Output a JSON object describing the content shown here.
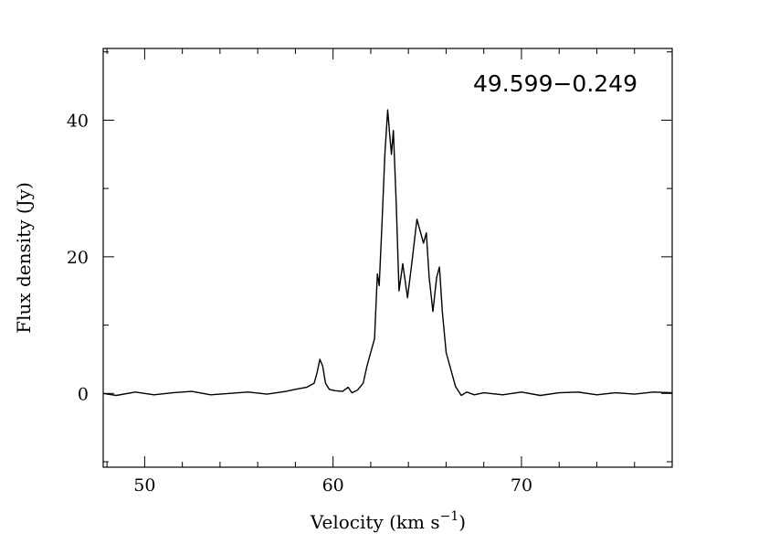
{
  "chart_data": {
    "type": "line",
    "title": "",
    "annotation": "49.599−0.249",
    "xlabel": "Velocity (km s",
    "xlabel_sup": "−1",
    "xlabel_end": ")",
    "ylabel": "Flux density (Jy)",
    "xlim": [
      47.8,
      78.0
    ],
    "ylim": [
      -10.8,
      50.5
    ],
    "x_major_ticks": [
      50,
      60,
      70
    ],
    "x_minor_step": 2,
    "y_major_ticks": [
      0,
      20,
      40
    ],
    "y_minor_step": 10,
    "x_tick_labels": [
      "50",
      "60",
      "70"
    ],
    "y_tick_labels": [
      "0",
      "20",
      "40"
    ],
    "grid": false,
    "legend": "none",
    "color": "#000000",
    "series": [
      {
        "x": [
          47.8,
          48.5,
          49.5,
          50.5,
          51.5,
          52.5,
          53.5,
          54.5,
          55.5,
          56.5,
          57.5,
          58.0,
          58.6,
          59.0,
          59.15,
          59.3,
          59.45,
          59.6,
          59.8,
          60.1,
          60.5,
          60.8,
          61.0,
          61.3,
          61.6,
          61.8,
          62.0,
          62.2,
          62.35,
          62.45,
          62.6,
          62.75,
          62.9,
          63.0,
          63.1,
          63.2,
          63.35,
          63.5,
          63.7,
          63.95,
          64.2,
          64.45,
          64.65,
          64.8,
          64.95,
          65.1,
          65.3,
          65.5,
          65.65,
          65.8,
          66.0,
          66.2,
          66.5,
          66.8,
          67.1,
          67.5,
          68.0,
          69.0,
          70.0,
          71.0,
          72.0,
          73.0,
          74.0,
          75.0,
          76.0,
          77.0,
          78.0
        ],
        "y": [
          0.0,
          -0.3,
          0.2,
          -0.2,
          0.1,
          0.3,
          -0.2,
          0.0,
          0.2,
          -0.1,
          0.3,
          0.6,
          0.9,
          1.5,
          3.0,
          5.0,
          4.0,
          1.5,
          0.6,
          0.4,
          0.3,
          0.9,
          0.1,
          0.5,
          1.5,
          4.0,
          6.0,
          8.0,
          17.5,
          15.8,
          25.0,
          35.0,
          41.5,
          38.0,
          35.0,
          38.5,
          28.0,
          15.0,
          19.0,
          14.0,
          19.5,
          25.5,
          23.5,
          22.0,
          23.5,
          17.0,
          12.0,
          17.0,
          18.5,
          12.0,
          6.0,
          4.0,
          1.0,
          -0.3,
          0.2,
          -0.2,
          0.1,
          -0.2,
          0.2,
          -0.3,
          0.1,
          0.2,
          -0.2,
          0.1,
          -0.1,
          0.2,
          0.1
        ]
      }
    ]
  }
}
